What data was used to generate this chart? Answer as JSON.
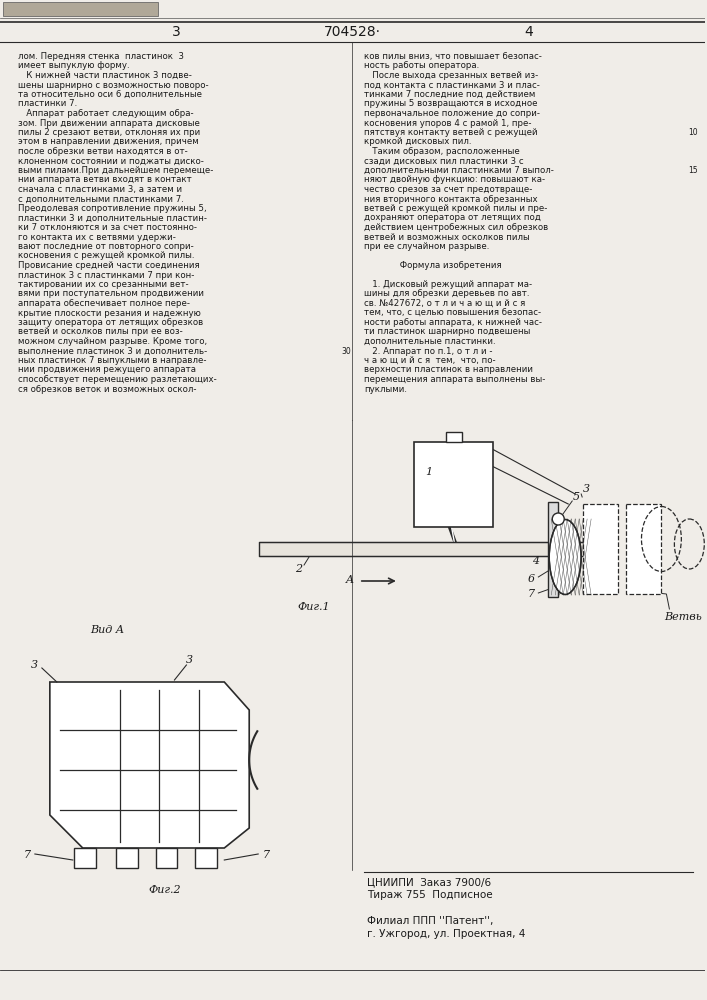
{
  "title": "704528·",
  "page_left": "3",
  "page_right": "4",
  "text_left_col": [
    "лом. Передняя стенка  пластинок  3",
    "имеет выпуклую форму.",
    "   К нижней части пластинок 3 подве-",
    "шены шарнирно с возможностью поворо-",
    "та относительно оси 6 дополнительные",
    "пластинки 7.",
    "   Аппарат работает следующим обра-",
    "зом. При движении аппарата дисковые",
    "пилы 2 срезают ветви, отклоняя их при",
    "этом в направлении движения, причем",
    "после обрезки ветви находятся в от-",
    "клоненном состоянии и поджаты диско-",
    "выми пилами.При дальнейшем перемеще-",
    "нии аппарата ветви входят в контакт",
    "сначала с пластинками 3, а затем и",
    "с дополнительными пластинками 7.",
    "Преодолевая сопротивление пружины 5,",
    "пластинки 3 и дополнительные пластин-",
    "ки 7 отклоняются и за счет постоянно-",
    "го контакта их с ветвями удержи-",
    "вают последние от повторного сопри-",
    "косновения с режущей кромкой пилы.",
    "Провисание средней части соединения",
    "пластинок 3 с пластинками 7 при кон-",
    "тактировании их со срезанными вет-",
    "вями при поступательном продвижении",
    "аппарата обеспечивает полное пере-",
    "крытие плоскости резания и надежную",
    "защиту оператора от летящих обрезков",
    "ветвей и осколков пилы при ее воз-",
    "можном случайном разрыве. Кроме того,",
    "выполнение пластинок 3 и дополнитель-",
    "ных пластинок 7 выпуклыми в направле-",
    "нии продвижения режущего аппарата",
    "способствует перемещению разлетающих-",
    "ся обрезков веток и возможных оскол-"
  ],
  "text_right_col": [
    "ков пилы вниз, что повышает безопас-",
    "ность работы оператора.",
    "   После выхода срезанных ветвей из-",
    "под контакта с пластинками 3 и плас-",
    "тинками 7 последние под действием",
    "пружины 5 возвращаются в исходное",
    "первоначальное положение до сопри-",
    "косновения упоров 4 с рамой 1, пре-",
    "пятствуя контакту ветвей с режущей",
    "кромкой дисковых пил.",
    "   Таким образом, расположенные",
    "сзади дисковых пил пластинки 3 с",
    "дополнительными пластинками 7 выпол-",
    "няют двойную функцию: повышают ка-",
    "чество срезов за счет предотвраще-",
    "ния вторичного контакта обрезанных",
    "ветвей с режущей кромкой пилы и пре-",
    "дохраняют оператора от летящих под",
    "действием центробежных сил обрезков",
    "ветвей и возможных осколков пилы",
    "при ее случайном разрыве.",
    "",
    "             Формула изобретения",
    "",
    "   1. Дисковый режущий аппарат ма-",
    "шины для обрезки деревьев по авт.",
    "св. №427672, о т л и ч а ю щ и й с я",
    "тем, что, с целью повышения безопас-",
    "ности работы аппарата, к нижней час-",
    "ти пластинок шарнирно подвешены",
    "дополнительные пластинки.",
    "   2. Аппарат по п.1, о т л и -",
    "ч а ю щ и й с я  тем,  что, по-",
    "верхности пластинок в направлении",
    "перемещения аппарата выполнены вы-",
    "пуклыми."
  ],
  "footer_text": [
    "ЦНИИПИ  Заказ 7900/6",
    "Тираж 755  Подписное",
    "",
    "Филиал ППП ''Патент'',",
    "г. Ужгород, ул. Проектная, 4"
  ],
  "bg_color": "#f0ede8",
  "text_color": "#1a1a1a",
  "line_color": "#2a2a2a"
}
